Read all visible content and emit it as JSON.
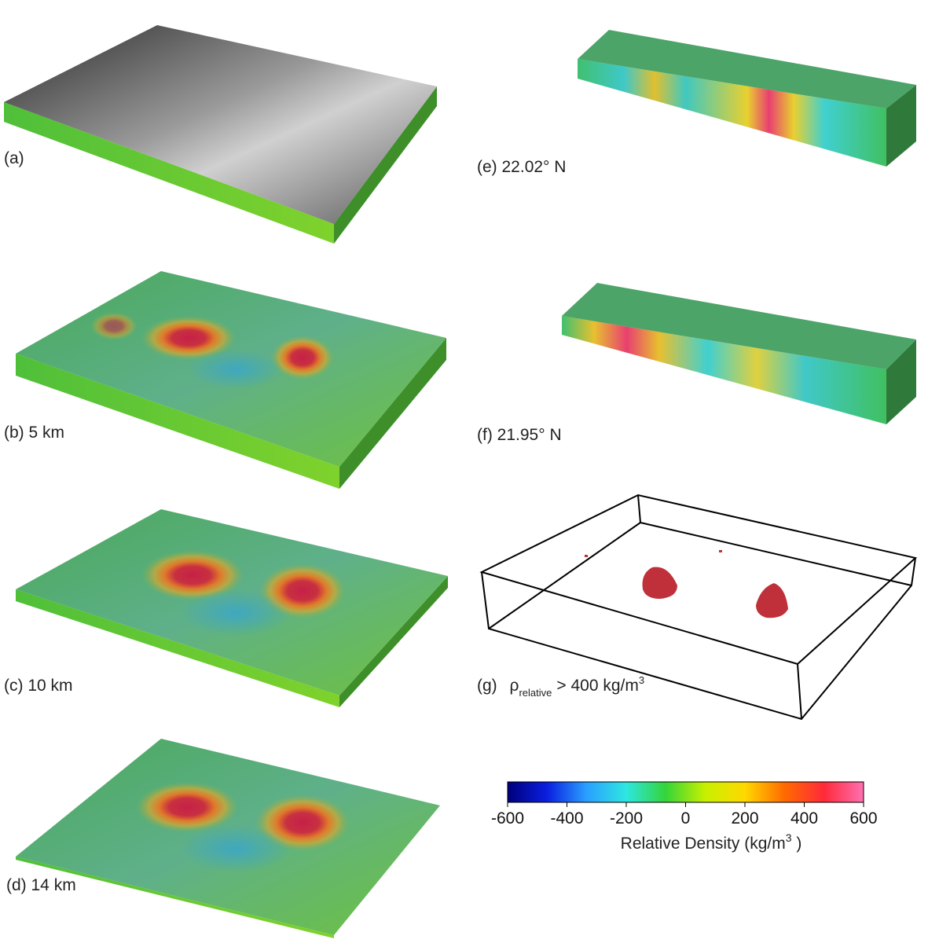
{
  "panels": [
    {
      "label": "(a)"
    },
    {
      "label": "(b) 5 km"
    },
    {
      "label": "(c) 10 km"
    },
    {
      "label": "(d) 14 km"
    },
    {
      "label": "(e) 22.02° N"
    },
    {
      "label": "(f) 21.95° N"
    }
  ],
  "panel_g": {
    "label": "(g)",
    "symbol": "ρ",
    "subscript": "relative",
    "condition": "> 400 kg/m",
    "superscript": "3"
  },
  "colorbar": {
    "lim": [
      -600,
      600
    ],
    "ticks": [
      -600,
      -400,
      -200,
      0,
      200,
      400,
      600
    ],
    "colors": [
      "#00007a",
      "#0a1fe0",
      "#2aa0ff",
      "#2ee6e0",
      "#35d43a",
      "#c8f000",
      "#ffd800",
      "#ff6a00",
      "#ff2a3a",
      "#ff70b0"
    ],
    "title": "Relative Density (kg/m",
    "title_superscript": "3",
    "title_end": " )"
  }
}
